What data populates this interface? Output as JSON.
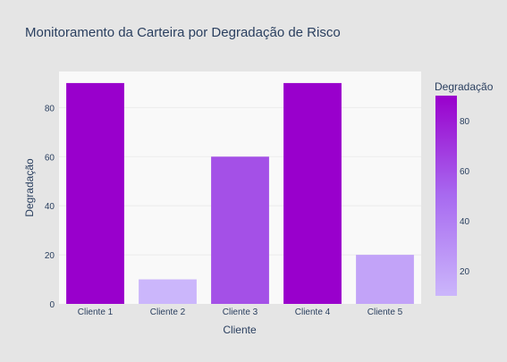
{
  "chart_data": {
    "type": "bar",
    "title": "Monitoramento da Carteira por Degradação de Risco",
    "xlabel": "Cliente",
    "ylabel": "Degradação",
    "categories": [
      "Cliente 1",
      "Cliente 2",
      "Cliente 3",
      "Cliente 4",
      "Cliente 5"
    ],
    "values": [
      90,
      10,
      60,
      90,
      20
    ],
    "ylim": [
      0,
      94.7
    ],
    "yticks": [
      0,
      20,
      40,
      60,
      80
    ],
    "grid": true,
    "colorscale": {
      "title": "Degradação",
      "min": 10,
      "max": 90,
      "ticks": [
        20,
        40,
        60,
        80
      ],
      "stops": [
        [
          0.0,
          "#cbb6fb"
        ],
        [
          0.5,
          "#a86af0"
        ],
        [
          1.0,
          "#9900cc"
        ]
      ]
    },
    "colors": {
      "paper": "#e5e5e5",
      "plot_bg": "#f9f9f9",
      "grid": "#ececec",
      "text": "#2a3f5f"
    }
  }
}
